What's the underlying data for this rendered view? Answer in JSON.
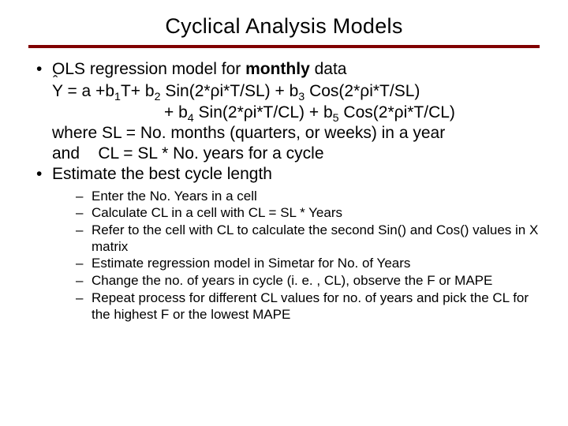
{
  "colors": {
    "rule": "#800000",
    "text": "#000000",
    "background": "#ffffff"
  },
  "typography": {
    "title_fontsize": 27,
    "body_fontsize": 21,
    "sub_fontsize": 17,
    "font_family": "Verdana, Geneva, sans-serif"
  },
  "title": "Cyclical Analysis Models",
  "bullets": {
    "b1_prefix": "OLS regression model for ",
    "b1_bold": "monthly",
    "b1_suffix": " data",
    "eq1_a": "Y = a +b",
    "eq1_b": "T+ b",
    "eq1_c": " Sin(2*ρi*T/SL) + b",
    "eq1_d": " Cos(2*ρi*T/SL)",
    "eq2_a": "+ b",
    "eq2_b": " Sin(2*ρi*T/CL) + b",
    "eq2_c": " Cos(2*ρi*T/CL)",
    "sub1": "1",
    "sub2": "2",
    "sub3": "3",
    "sub4": "4",
    "sub5": "5",
    "where1": "where SL = No. months (quarters, or weeks) in a year",
    "where2": "and    CL = SL * No. years for a cycle",
    "b2": "Estimate the best cycle length",
    "sub_items": {
      "s1": "Enter the No. Years in a cell",
      "s2": "Calculate CL in a cell with CL = SL * Years",
      "s3": "Refer to the cell with CL to calculate the second Sin() and Cos() values in X matrix",
      "s4": "Estimate regression model in Simetar for No. of Years",
      "s5": "Change the no. of years in cycle (i. e. , CL), observe the F or MAPE",
      "s6": "Repeat process for different CL values for no. of years and pick the CL for the highest F or the lowest MAPE"
    }
  }
}
